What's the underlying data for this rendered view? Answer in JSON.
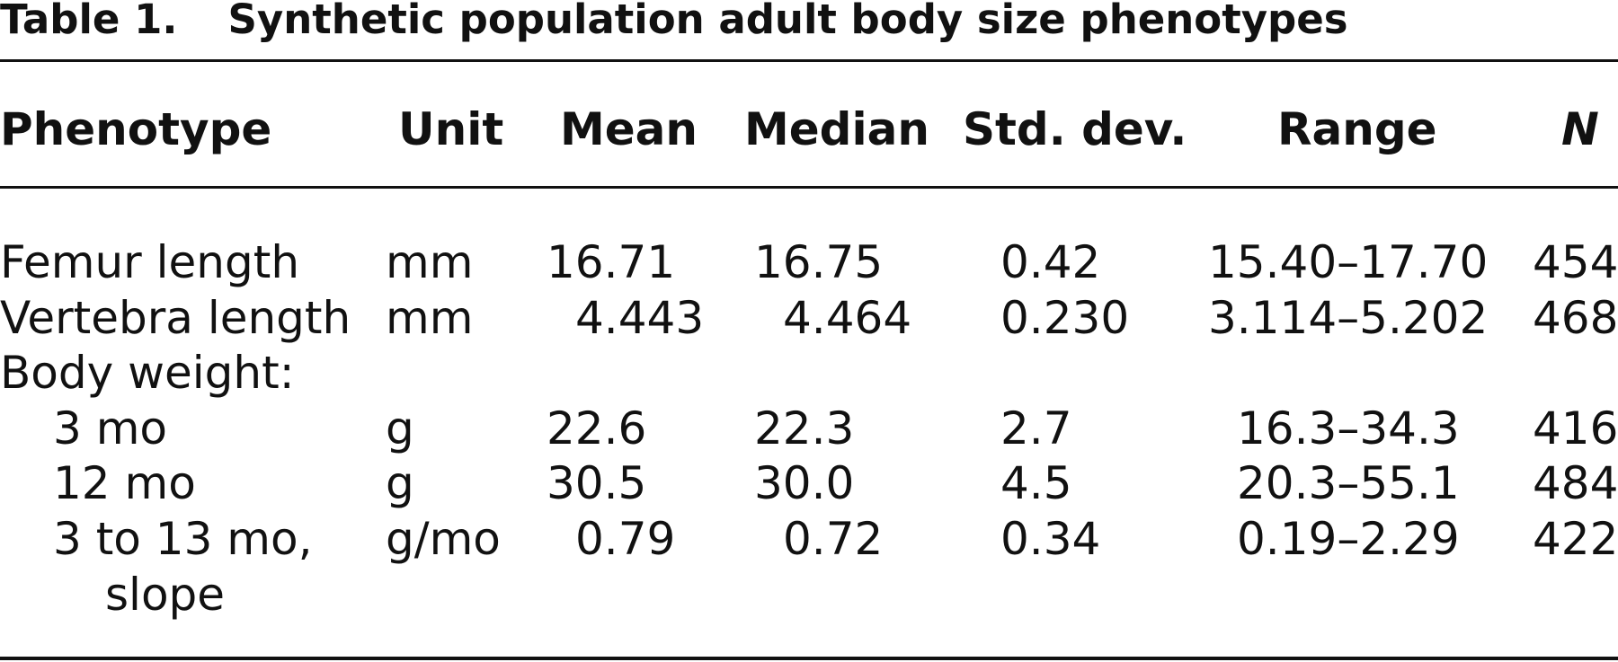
{
  "table": {
    "label": "Table 1.",
    "title": "Synthetic population adult body size phenotypes",
    "columns": [
      "Phenotype",
      "Unit",
      "Mean",
      "Median",
      "Std. dev.",
      "Range",
      "N"
    ],
    "rows": [
      {
        "phenotype": "Femur length",
        "unit": "mm",
        "mean": "16.71",
        "median": "16.75",
        "sd": "0.42",
        "range": "15.40–17.70",
        "n": "454"
      },
      {
        "phenotype": "Vertebra length",
        "unit": "mm",
        "mean": "4.443",
        "median": "4.464",
        "sd": "0.230",
        "range": "3.114–5.202",
        "n": "468"
      },
      {
        "phenotype": "Body weight:",
        "unit": "",
        "mean": "",
        "median": "",
        "sd": "",
        "range": "",
        "n": ""
      },
      {
        "phenotype": "3 mo",
        "unit": "g",
        "mean": "22.6",
        "median": "22.3",
        "sd": "2.7",
        "range": "16.3–34.3",
        "n": "416"
      },
      {
        "phenotype": "12 mo",
        "unit": "g",
        "mean": "30.5",
        "median": "30.0",
        "sd": "4.5",
        "range": "20.3–55.1",
        "n": "484"
      },
      {
        "phenotype": "3 to 13 mo,",
        "phenotype_cont": "slope",
        "unit": "g/mo",
        "mean": "0.79",
        "median": "0.72",
        "sd": "0.34",
        "range": "0.19–2.29",
        "n": "422"
      }
    ]
  }
}
